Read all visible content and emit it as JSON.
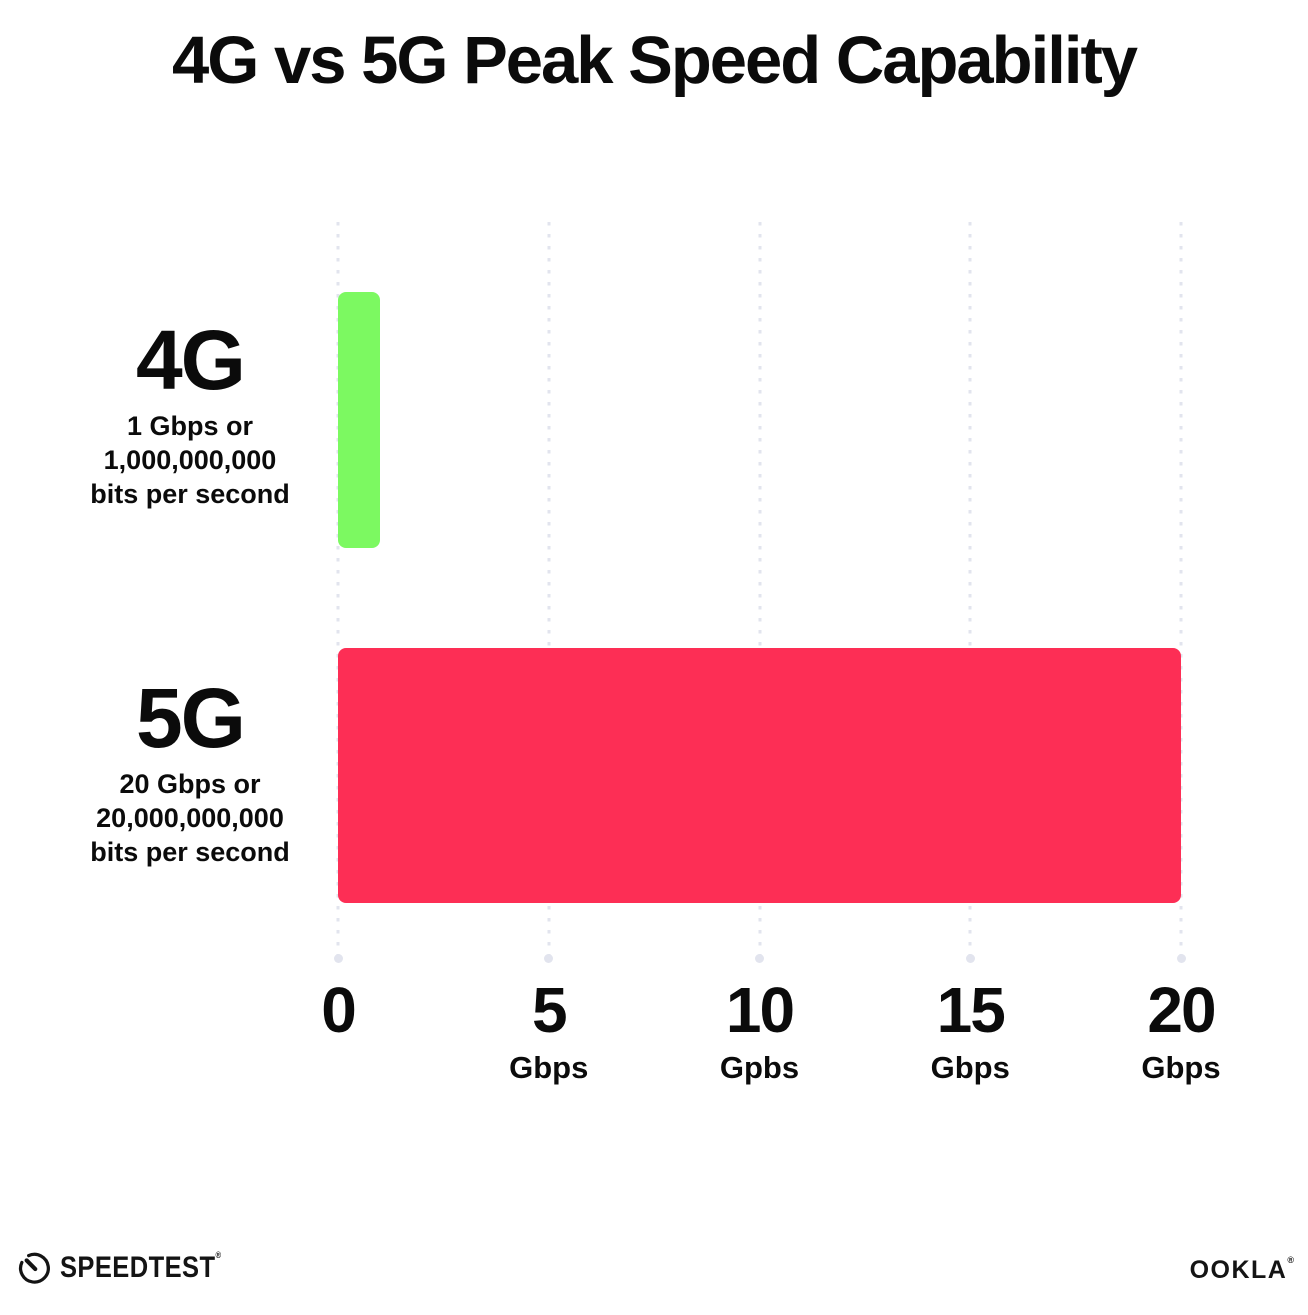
{
  "title": "4G vs 5G Peak Speed Capability",
  "colors": {
    "bar_4g": "#7CF961",
    "bar_5g": "#FD2E55",
    "gridline": "#E2E4EE",
    "text": "#0B0B0B"
  },
  "chart_data": {
    "type": "bar",
    "orientation": "horizontal",
    "title": "4G vs 5G Peak Speed Capability",
    "categories": [
      "4G",
      "5G"
    ],
    "values": [
      1,
      20
    ],
    "value_unit": "Gbps",
    "xlim": [
      0,
      20
    ],
    "grid": "vertical dotted gridlines at 0, 5, 10, 15, 20",
    "legend": "none",
    "x_ticks": [
      {
        "number": "0",
        "unit": ""
      },
      {
        "number": "5",
        "unit": "Gbps"
      },
      {
        "number": "10",
        "unit": "Gpbs"
      },
      {
        "number": "15",
        "unit": "Gbps"
      },
      {
        "number": "20",
        "unit": "Gbps"
      }
    ],
    "rows": [
      {
        "label": "4G",
        "sublabel_lines": [
          "1 Gbps or",
          "1,000,000,000",
          "bits per second"
        ],
        "value": 1,
        "color": "#7CF961"
      },
      {
        "label": "5G",
        "sublabel_lines": [
          "20 Gbps or",
          "20,000,000,000",
          "bits per second"
        ],
        "value": 20,
        "color": "#FD2E55"
      }
    ]
  },
  "footer": {
    "speedtest": {
      "label": "SPEEDTEST",
      "mark": "®"
    },
    "ookla": {
      "label": "OOKLA",
      "mark": "®"
    }
  }
}
